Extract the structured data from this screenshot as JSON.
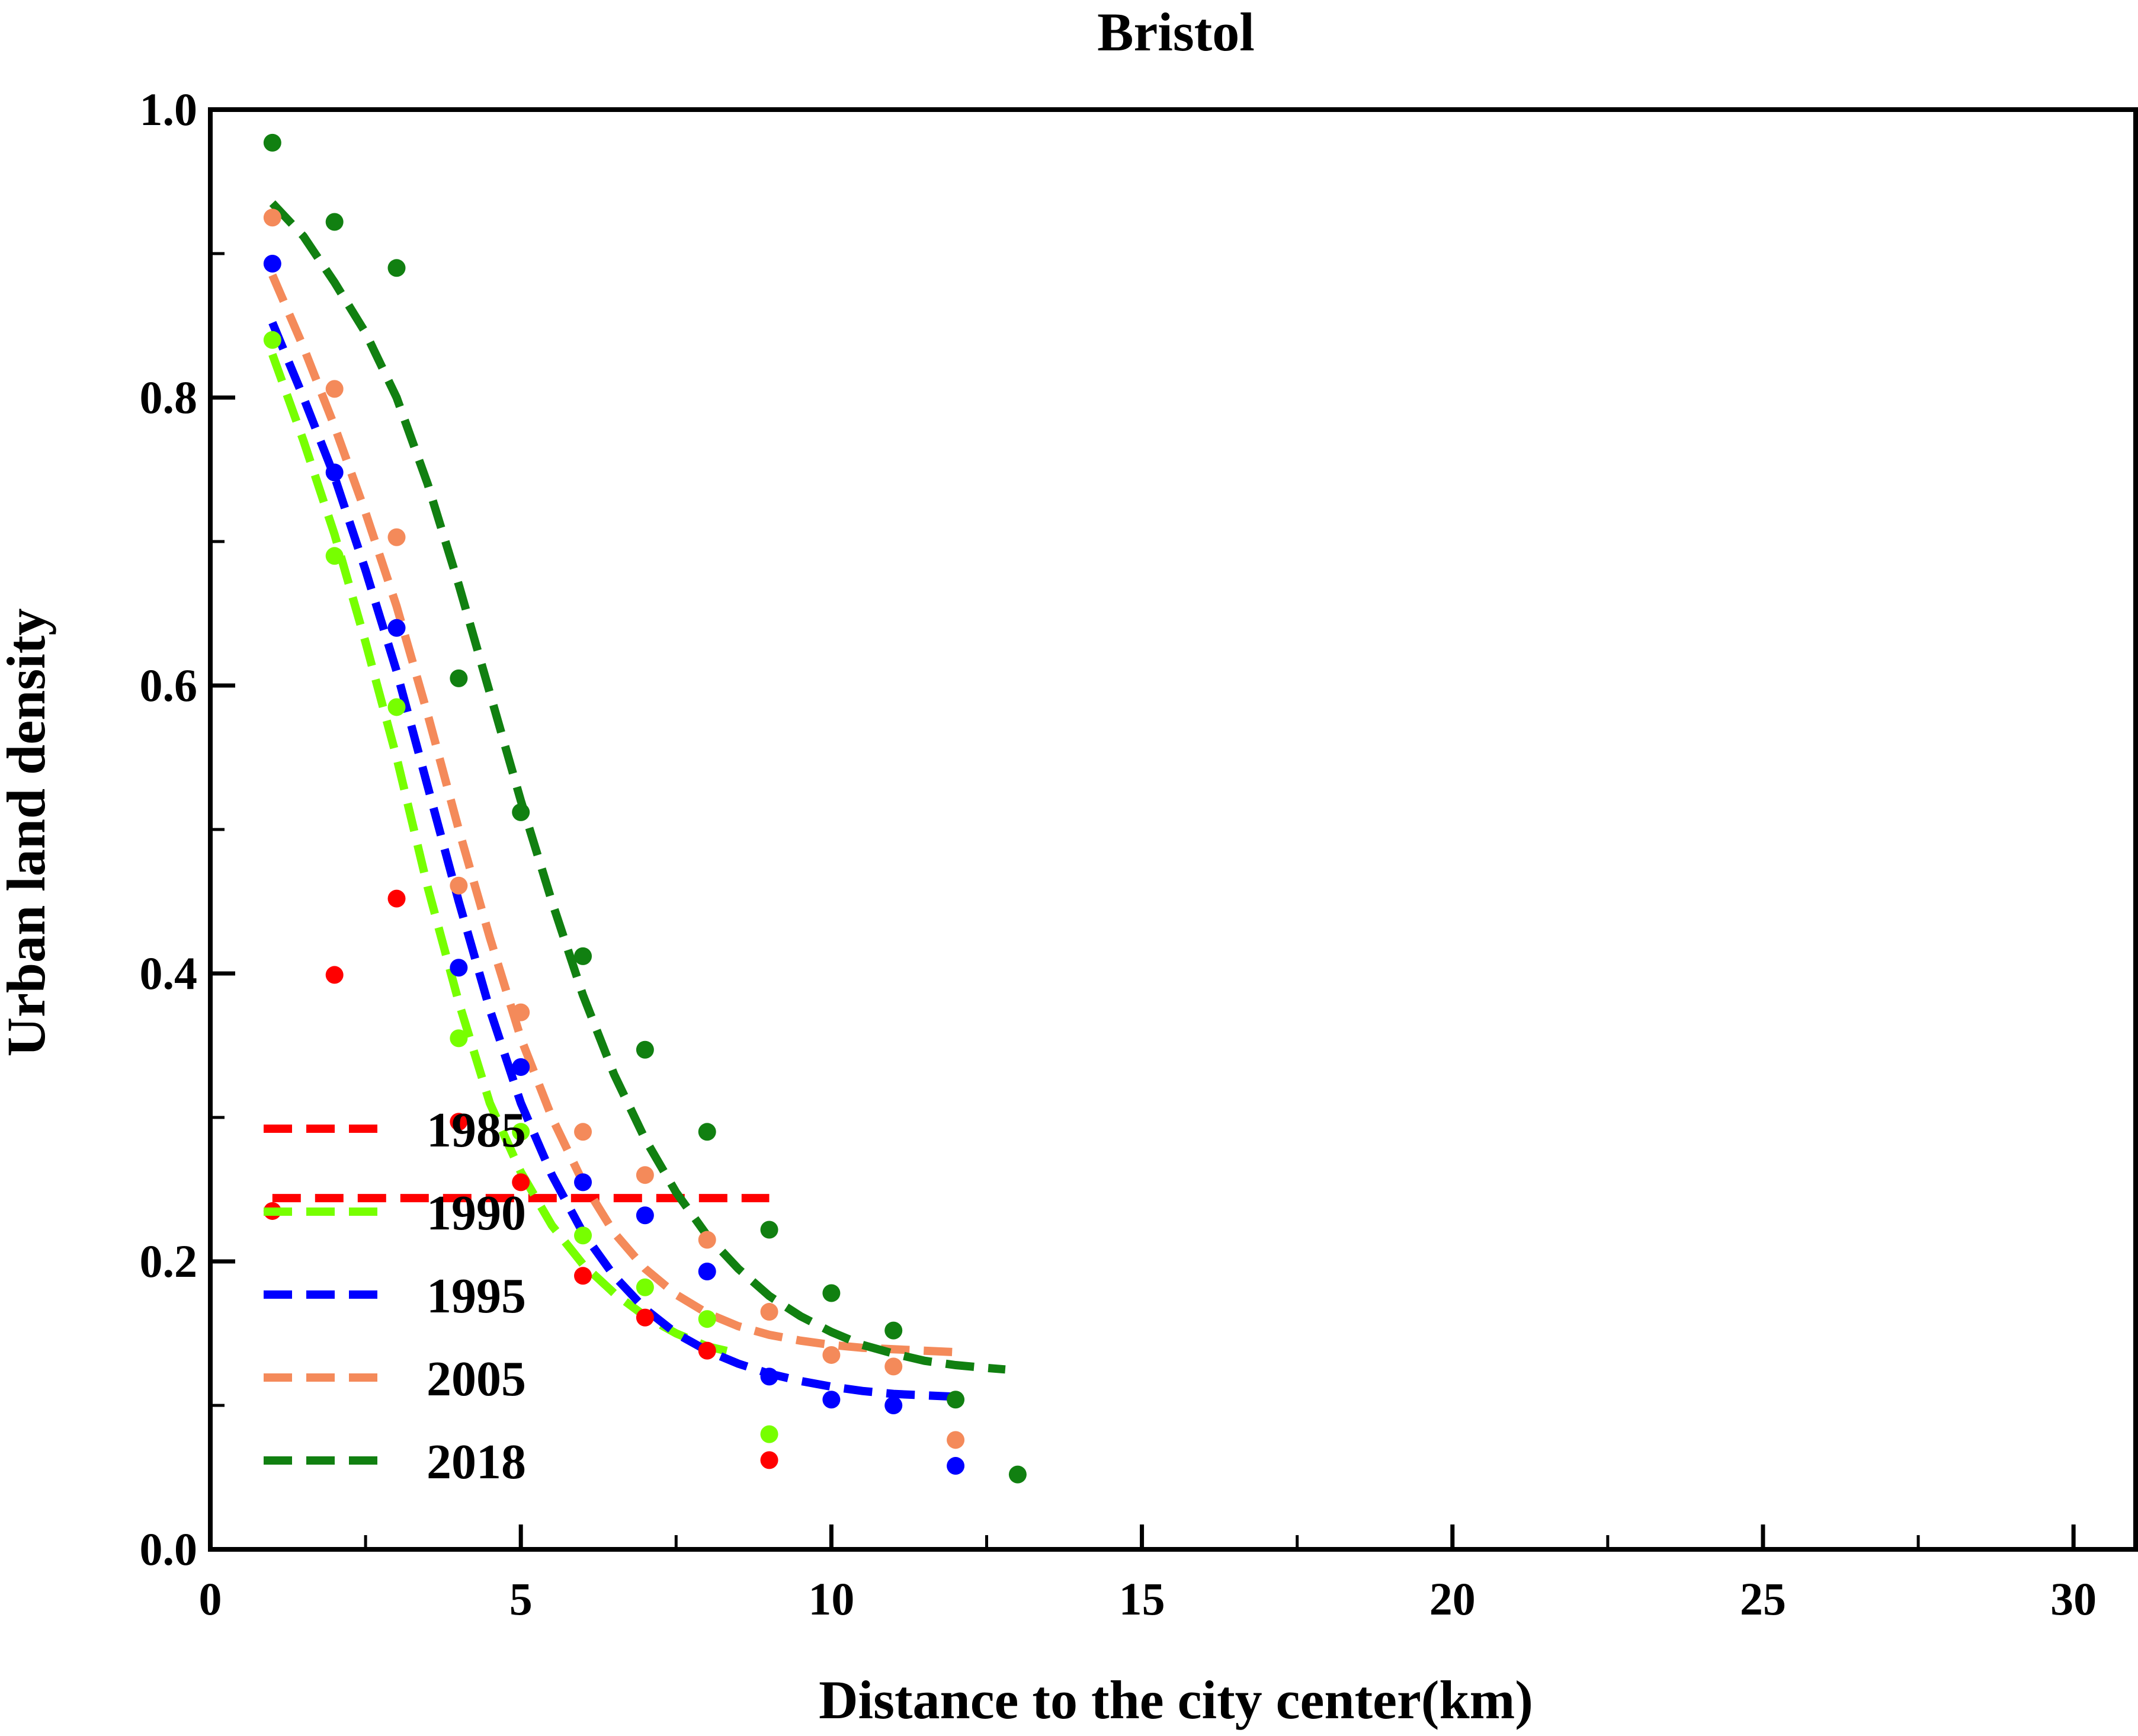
{
  "chart_data": {
    "type": "scatter",
    "title": "Bristol",
    "xlabel": "Distance to the city center(km)",
    "ylabel": "Urban land density",
    "xlim": [
      0,
      31
    ],
    "ylim": [
      0,
      1.0
    ],
    "x_ticks": [
      0,
      5,
      10,
      15,
      20,
      25,
      30
    ],
    "y_ticks": [
      0.0,
      0.2,
      0.4,
      0.6,
      0.8,
      1.0
    ],
    "x_tick_labels": [
      "0",
      "5",
      "10",
      "15",
      "20",
      "25",
      "30"
    ],
    "y_tick_labels": [
      "0.0",
      "0.2",
      "0.4",
      "0.6",
      "0.8",
      "1.0"
    ],
    "grid": false,
    "legend_position": "bottom-left",
    "series": [
      {
        "name": "1985",
        "color": "#ff0000",
        "points": [
          [
            1,
            0.235
          ],
          [
            2,
            0.399
          ],
          [
            3,
            0.452
          ],
          [
            4,
            0.297
          ],
          [
            5,
            0.255
          ],
          [
            6,
            0.19
          ],
          [
            7,
            0.161
          ],
          [
            8,
            0.138
          ],
          [
            9,
            0.062
          ]
        ],
        "fit": [
          [
            1,
            0.244
          ],
          [
            2,
            0.244
          ],
          [
            3,
            0.244
          ],
          [
            4,
            0.244
          ],
          [
            5,
            0.244
          ],
          [
            6,
            0.244
          ],
          [
            7,
            0.244
          ],
          [
            8,
            0.244
          ],
          [
            9,
            0.244
          ]
        ]
      },
      {
        "name": "1990",
        "color": "#77ff00",
        "points": [
          [
            1,
            0.84
          ],
          [
            2,
            0.69
          ],
          [
            3,
            0.585
          ],
          [
            4,
            0.355
          ],
          [
            5,
            0.29
          ],
          [
            6,
            0.218
          ],
          [
            7,
            0.182
          ],
          [
            8,
            0.16
          ],
          [
            9,
            0.08
          ]
        ],
        "fit": [
          [
            1,
            0.83
          ],
          [
            1.5,
            0.77
          ],
          [
            2,
            0.705
          ],
          [
            2.5,
            0.63
          ],
          [
            3,
            0.55
          ],
          [
            3.5,
            0.46
          ],
          [
            4,
            0.38
          ],
          [
            4.5,
            0.31
          ],
          [
            5,
            0.262
          ],
          [
            5.5,
            0.225
          ],
          [
            6,
            0.198
          ],
          [
            6.5,
            0.178
          ],
          [
            7,
            0.162
          ],
          [
            7.5,
            0.15
          ],
          [
            8,
            0.141
          ],
          [
            8.5,
            0.136
          ]
        ]
      },
      {
        "name": "1995",
        "color": "#0000ff",
        "points": [
          [
            1,
            0.893
          ],
          [
            2,
            0.748
          ],
          [
            3,
            0.64
          ],
          [
            4,
            0.404
          ],
          [
            5,
            0.335
          ],
          [
            6,
            0.255
          ],
          [
            7,
            0.232
          ],
          [
            8,
            0.193
          ],
          [
            9,
            0.12
          ],
          [
            10,
            0.104
          ],
          [
            11,
            0.1
          ],
          [
            12,
            0.058
          ]
        ],
        "fit": [
          [
            1,
            0.852
          ],
          [
            1.5,
            0.8
          ],
          [
            2,
            0.745
          ],
          [
            2.5,
            0.68
          ],
          [
            3,
            0.61
          ],
          [
            3.5,
            0.53
          ],
          [
            4,
            0.45
          ],
          [
            4.5,
            0.375
          ],
          [
            5,
            0.31
          ],
          [
            5.5,
            0.26
          ],
          [
            6,
            0.22
          ],
          [
            6.5,
            0.19
          ],
          [
            7,
            0.167
          ],
          [
            7.5,
            0.15
          ],
          [
            8,
            0.138
          ],
          [
            8.5,
            0.129
          ],
          [
            9,
            0.122
          ],
          [
            9.5,
            0.117
          ],
          [
            10,
            0.113
          ],
          [
            10.5,
            0.11
          ],
          [
            11,
            0.108
          ],
          [
            11.5,
            0.107
          ],
          [
            12,
            0.106
          ]
        ]
      },
      {
        "name": "2005",
        "color": "#f48a5a",
        "points": [
          [
            1,
            0.925
          ],
          [
            2,
            0.806
          ],
          [
            3,
            0.703
          ],
          [
            4,
            0.461
          ],
          [
            5,
            0.373
          ],
          [
            6,
            0.29
          ],
          [
            7,
            0.26
          ],
          [
            8,
            0.215
          ],
          [
            9,
            0.165
          ],
          [
            10,
            0.135
          ],
          [
            11,
            0.127
          ],
          [
            12,
            0.076
          ]
        ],
        "fit": [
          [
            1,
            0.885
          ],
          [
            1.5,
            0.835
          ],
          [
            2,
            0.78
          ],
          [
            2.5,
            0.72
          ],
          [
            3,
            0.655
          ],
          [
            3.5,
            0.58
          ],
          [
            4,
            0.5
          ],
          [
            4.5,
            0.425
          ],
          [
            5,
            0.355
          ],
          [
            5.5,
            0.3
          ],
          [
            6,
            0.255
          ],
          [
            6.5,
            0.22
          ],
          [
            7,
            0.195
          ],
          [
            7.5,
            0.177
          ],
          [
            8,
            0.164
          ],
          [
            8.5,
            0.155
          ],
          [
            9,
            0.149
          ],
          [
            9.5,
            0.145
          ],
          [
            10,
            0.142
          ],
          [
            10.5,
            0.14
          ],
          [
            11,
            0.139
          ],
          [
            11.5,
            0.138
          ],
          [
            12,
            0.137
          ]
        ]
      },
      {
        "name": "2018",
        "color": "#118011",
        "points": [
          [
            1,
            0.977
          ],
          [
            2,
            0.922
          ],
          [
            3,
            0.89
          ],
          [
            4,
            0.605
          ],
          [
            5,
            0.512
          ],
          [
            6,
            0.412
          ],
          [
            7,
            0.347
          ],
          [
            8,
            0.29
          ],
          [
            9,
            0.222
          ],
          [
            10,
            0.178
          ],
          [
            11,
            0.152
          ],
          [
            12,
            0.104
          ],
          [
            13,
            0.052
          ]
        ],
        "fit": [
          [
            1,
            0.935
          ],
          [
            1.5,
            0.912
          ],
          [
            2,
            0.88
          ],
          [
            2.5,
            0.845
          ],
          [
            3,
            0.8
          ],
          [
            3.5,
            0.74
          ],
          [
            4,
            0.67
          ],
          [
            4.5,
            0.595
          ],
          [
            5,
            0.52
          ],
          [
            5.5,
            0.45
          ],
          [
            6,
            0.385
          ],
          [
            6.5,
            0.33
          ],
          [
            7,
            0.285
          ],
          [
            7.5,
            0.248
          ],
          [
            8,
            0.218
          ],
          [
            8.5,
            0.195
          ],
          [
            9,
            0.176
          ],
          [
            9.5,
            0.162
          ],
          [
            10,
            0.151
          ],
          [
            10.5,
            0.142
          ],
          [
            11,
            0.136
          ],
          [
            11.5,
            0.131
          ],
          [
            12,
            0.128
          ],
          [
            12.5,
            0.126
          ],
          [
            12.8,
            0.125
          ]
        ]
      }
    ]
  }
}
